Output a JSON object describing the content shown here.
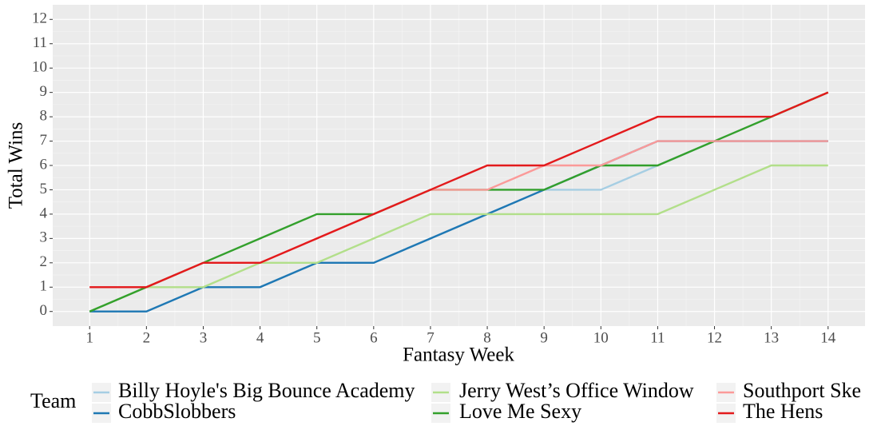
{
  "chart_data": {
    "type": "line",
    "x_label": "Fantasy Week",
    "y_label": "Total Wins",
    "legend_title": "Team",
    "x": [
      1,
      2,
      3,
      4,
      5,
      6,
      7,
      8,
      9,
      10,
      11,
      12,
      13,
      14
    ],
    "xlim": [
      0.35,
      14.65
    ],
    "xticks": [
      1,
      2,
      3,
      4,
      5,
      6,
      7,
      8,
      9,
      10,
      11,
      12,
      13,
      14
    ],
    "ylim": [
      -0.6,
      12.6
    ],
    "yticks": [
      0,
      1,
      2,
      3,
      4,
      5,
      6,
      7,
      8,
      9,
      10,
      11,
      12
    ],
    "grid": true,
    "legend": "bottom",
    "series": [
      {
        "name": "Billy Hoyle's Big Bounce Academy",
        "color": "#a6cee3",
        "values": [
          0,
          0,
          1,
          1,
          2,
          2,
          3,
          4,
          5,
          5,
          6,
          7,
          7,
          7
        ]
      },
      {
        "name": "CobbSlobbers",
        "color": "#1f78b4",
        "values": [
          0,
          0,
          1,
          1,
          2,
          2,
          3,
          4,
          5,
          6,
          7,
          7,
          7,
          7
        ]
      },
      {
        "name": "Jerry West’s Office Window",
        "color": "#b2df8a",
        "values": [
          0,
          1,
          1,
          2,
          2,
          3,
          4,
          4,
          4,
          4,
          4,
          5,
          6,
          6
        ]
      },
      {
        "name": "Love Me Sexy",
        "color": "#33a02c",
        "values": [
          0,
          1,
          2,
          3,
          4,
          4,
          5,
          5,
          5,
          6,
          6,
          7,
          8,
          9
        ]
      },
      {
        "name": "Southport Ske",
        "color": "#fb9a99",
        "values": [
          1,
          1,
          2,
          2,
          3,
          4,
          5,
          5,
          6,
          6,
          7,
          7,
          7,
          7
        ]
      },
      {
        "name": "The Hens",
        "color": "#e31a1c",
        "values": [
          1,
          1,
          2,
          2,
          3,
          4,
          5,
          6,
          6,
          7,
          8,
          8,
          8,
          9
        ]
      }
    ]
  }
}
